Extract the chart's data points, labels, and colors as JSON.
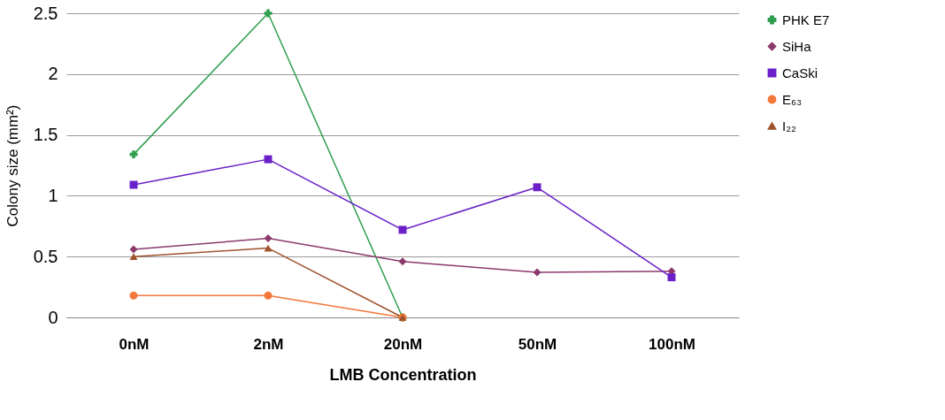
{
  "chart_data": {
    "type": "line",
    "xlabel": "LMB Concentration",
    "ylabel": "Colony size (mm²)",
    "categories": [
      "0nM",
      "2nM",
      "20nM",
      "50nM",
      "100nM"
    ],
    "series": [
      {
        "name": "PHK E7",
        "color": "#2e9e4f",
        "marker": "cross",
        "values": [
          1.34,
          2.5,
          0,
          null,
          null
        ]
      },
      {
        "name": "SiHa",
        "color": "#8b3a6b",
        "marker": "diamond",
        "values": [
          0.56,
          0.65,
          0.46,
          0.37,
          0.38
        ]
      },
      {
        "name": "CaSki",
        "color": "#6a1fc9",
        "marker": "square",
        "values": [
          1.09,
          1.3,
          0.72,
          1.07,
          0.33
        ]
      },
      {
        "name": "E₆₃",
        "color": "#f4783a",
        "marker": "circle",
        "values": [
          0.18,
          0.18,
          0,
          null,
          null
        ]
      },
      {
        "name": "I₂₂",
        "color": "#a0522d",
        "marker": "triangle",
        "values": [
          0.5,
          0.57,
          0,
          null,
          null
        ]
      }
    ],
    "ylim": [
      0,
      2.5
    ],
    "yticks": [
      0,
      0.5,
      1,
      1.5,
      2,
      2.5
    ],
    "grid": "y",
    "legend": "right"
  }
}
